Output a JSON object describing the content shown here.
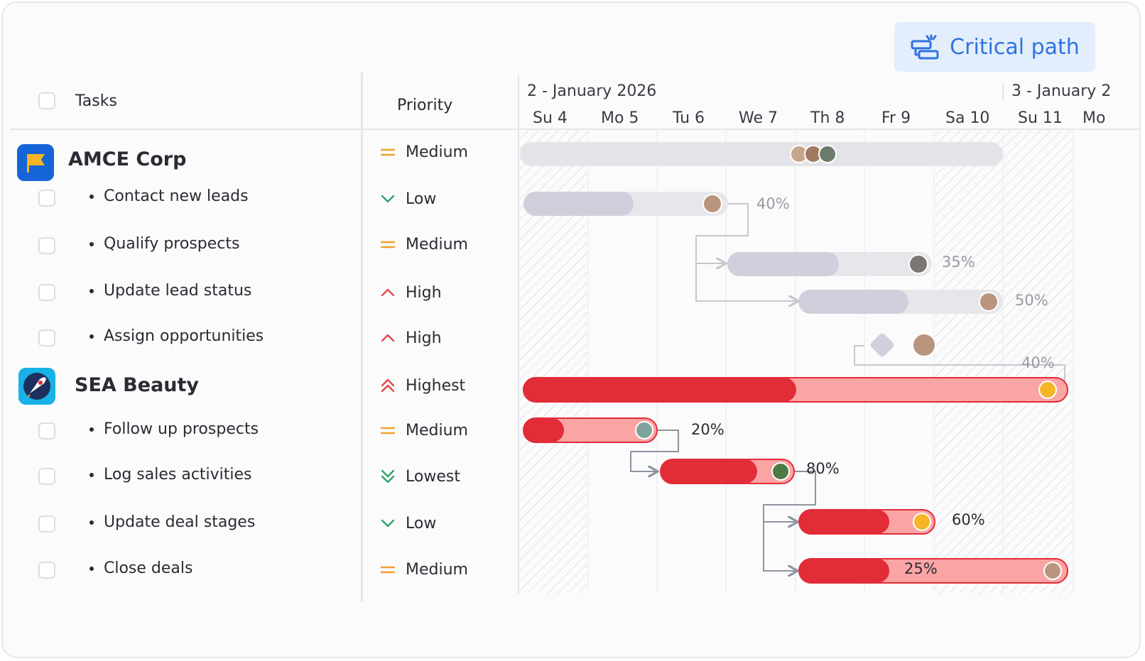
{
  "toolbar": {
    "critical_path_label": "Critical path"
  },
  "columns": {
    "tasks": "Tasks",
    "priority": "Priority"
  },
  "timeline": {
    "week1": "2 - January 2026",
    "week2": "3 - January 2",
    "days": [
      "Su 4",
      "Mo 5",
      "Tu 6",
      "We 7",
      "Th 8",
      "Fr 9",
      "Sa 10",
      "Su 11",
      "Mo"
    ]
  },
  "groups": [
    {
      "name": "AMCE Corp",
      "priority": "Medium",
      "icon": "flag-icon",
      "tasks": [
        {
          "name": "Contact new leads",
          "priority": "Low",
          "progress": "40%"
        },
        {
          "name": "Qualify prospects",
          "priority": "Medium",
          "progress": "35%"
        },
        {
          "name": "Update lead status",
          "priority": "High",
          "progress": "50%"
        },
        {
          "name": "Assign opportunities",
          "priority": "High",
          "progress": "40%"
        }
      ]
    },
    {
      "name": "SEA Beauty",
      "priority": "Highest",
      "icon": "rocket-icon",
      "tasks": [
        {
          "name": "Follow up prospects",
          "priority": "Medium",
          "progress": "20%"
        },
        {
          "name": "Log sales activities",
          "priority": "Lowest",
          "progress": "80%"
        },
        {
          "name": "Update deal stages",
          "priority": "Low",
          "progress": "60%"
        },
        {
          "name": "Close deals",
          "priority": "Medium",
          "progress": "25%"
        }
      ]
    }
  ],
  "colors": {
    "critical": "#e22c38",
    "critical_light": "#fba4a4",
    "normal": "#cfd0dc",
    "normal_light": "#e6e6eb",
    "medium": "#f0a12b",
    "low": "#2fa36b",
    "high": "#e54848"
  }
}
